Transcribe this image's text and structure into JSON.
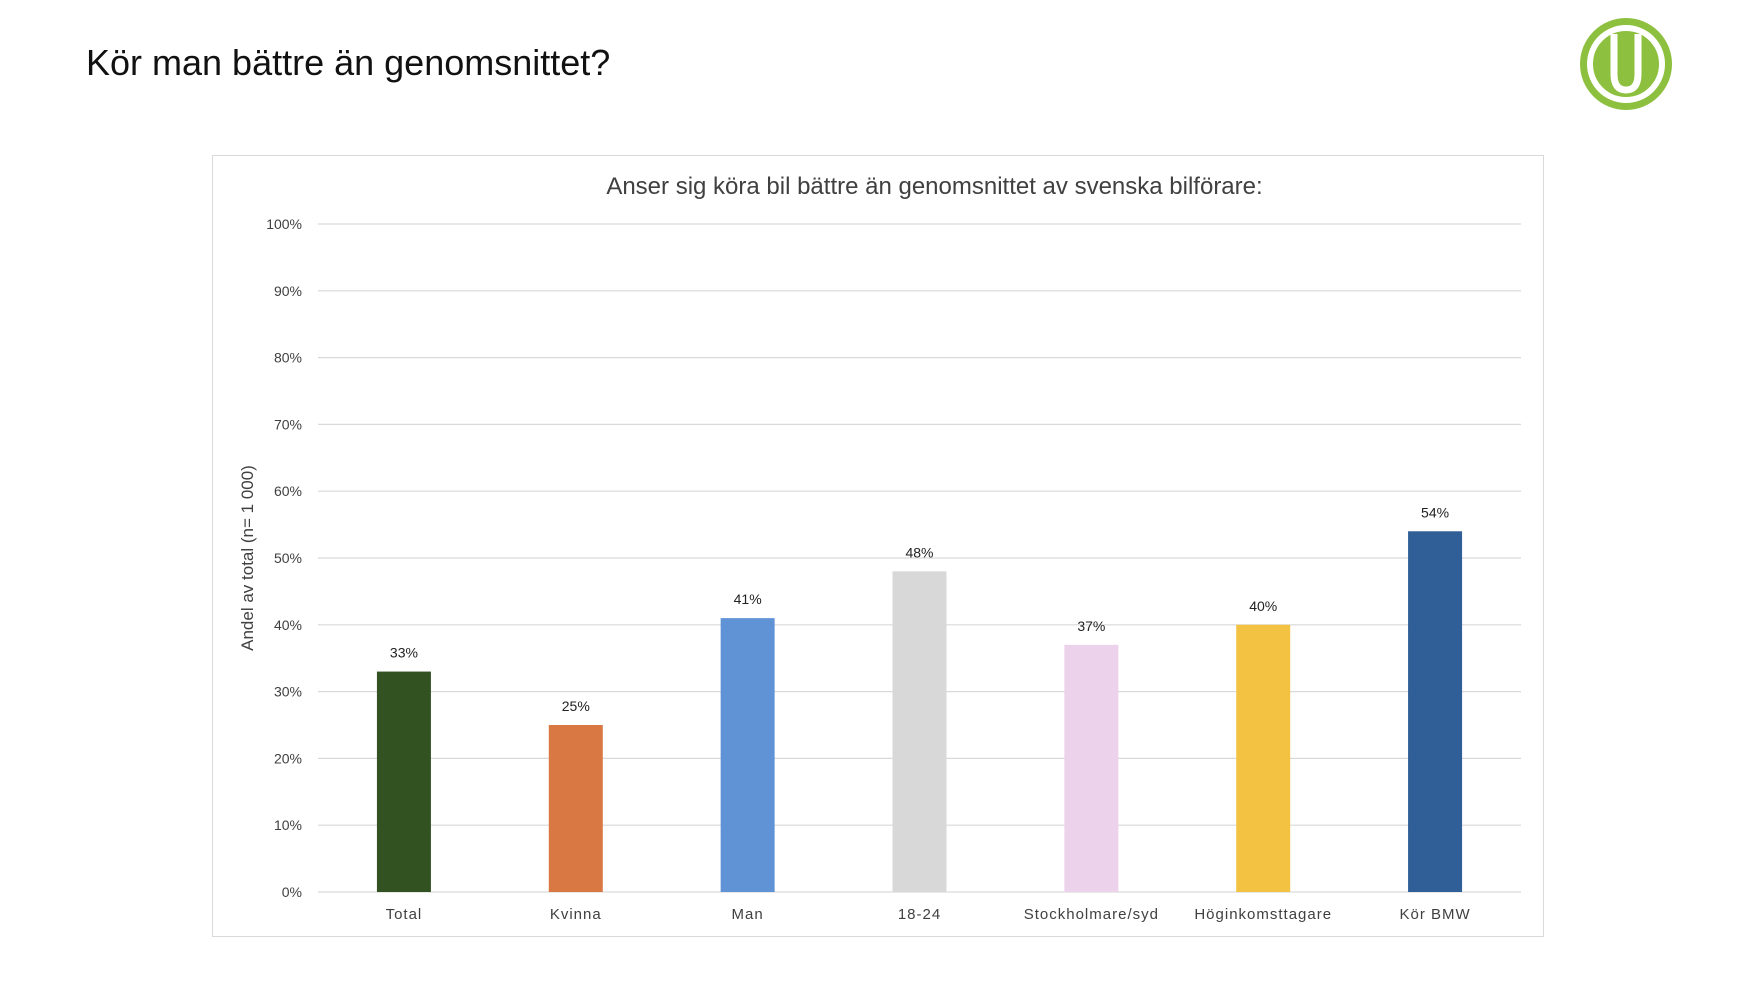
{
  "slide": {
    "title": "Kör man bättre än genomsnittet?"
  },
  "colors": {
    "logo_green": "#8DC03F",
    "grid": "#d9d9d9",
    "text": "#404040"
  },
  "chart_data": {
    "type": "bar",
    "title": "Anser sig köra bil bättre än genomsnittet av svenska bilförare:",
    "xlabel": "",
    "ylabel": "Andel av total (n= 1 000)",
    "ylim": [
      0,
      100
    ],
    "y_ticks": [
      0,
      10,
      20,
      30,
      40,
      50,
      60,
      70,
      80,
      90,
      100
    ],
    "y_tick_suffix": "%",
    "grid": true,
    "legend": "none",
    "categories": [
      "Total",
      "Kvinna",
      "Man",
      "18-24",
      "Stockholmare/syd",
      "Höginkomsttagare",
      "Kör BMW"
    ],
    "values": [
      33,
      25,
      41,
      48,
      37,
      40,
      54
    ],
    "data_labels": [
      "33%",
      "25%",
      "41%",
      "48%",
      "37%",
      "40%",
      "54%"
    ],
    "bar_colors": [
      "#335222",
      "#D97842",
      "#5F93D5",
      "#D8D8D8",
      "#EDD2EC",
      "#F3C243",
      "#305E96"
    ]
  }
}
